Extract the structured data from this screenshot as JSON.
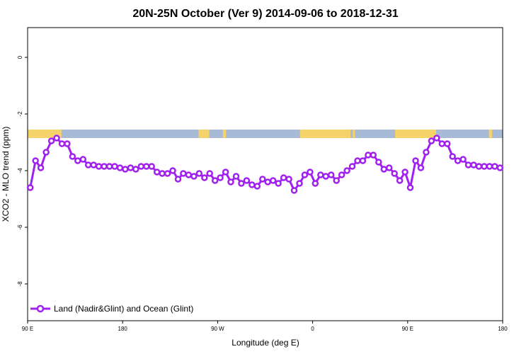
{
  "chart_data": {
    "type": "line",
    "title": "20N-25N October (Ver 9)   2014-09-06 to 2018-12-31",
    "xlabel": "Longitude (deg E)",
    "ylabel": "XCO2 - MLO trend (ppm)",
    "xlim": [
      90,
      540
    ],
    "ylim": [
      -9.3,
      1.05
    ],
    "x_ticks": [
      {
        "value": 90,
        "label": "90 E"
      },
      {
        "value": 180,
        "label": "180"
      },
      {
        "value": 270,
        "label": "90 W"
      },
      {
        "value": 360,
        "label": "0"
      },
      {
        "value": 450,
        "label": "90 E"
      },
      {
        "value": 540,
        "label": "180"
      }
    ],
    "y_ticks": [
      {
        "value": 0,
        "label": "0"
      },
      {
        "value": -2,
        "label": "-2"
      },
      {
        "value": -4,
        "label": "-4"
      },
      {
        "value": -6,
        "label": "-6"
      },
      {
        "value": -8,
        "label": "-8"
      }
    ],
    "grid": false,
    "legend_position": "bottom-left",
    "colors": {
      "series": "#a020f0",
      "land_band": "#f5d26a",
      "ocean_band": "#a7bbd6"
    },
    "land_ocean_band": {
      "y_range": [
        -2.85,
        -2.55
      ],
      "land_segments": [
        [
          90,
          122
        ],
        [
          252,
          262
        ],
        [
          275,
          278
        ],
        [
          348,
          396
        ],
        [
          398,
          400
        ],
        [
          438,
          477
        ],
        [
          527,
          530
        ]
      ]
    },
    "series": [
      {
        "name": "Land (Nadir&Glint) and Ocean (Glint)",
        "x": [
          92.5,
          97.5,
          102.5,
          107.5,
          112.5,
          117.5,
          122.5,
          127.5,
          132.5,
          137.5,
          142.5,
          147.5,
          152.5,
          157.5,
          162.5,
          167.5,
          172.5,
          177.5,
          182.5,
          187.5,
          192.5,
          197.5,
          202.5,
          207.5,
          212.5,
          217.5,
          222.5,
          227.5,
          232.5,
          237.5,
          242.5,
          247.5,
          252.5,
          257.5,
          262.5,
          267.5,
          272.5,
          277.5,
          282.5,
          287.5,
          292.5,
          297.5,
          302.5,
          307.5,
          312.5,
          317.5,
          322.5,
          327.5,
          332.5,
          337.5,
          342.5,
          347.5,
          352.5,
          357.5,
          362.5,
          367.5,
          372.5,
          377.5,
          382.5,
          387.5,
          392.5,
          397.5,
          402.5,
          407.5,
          412.5,
          417.5,
          422.5,
          427.5,
          432.5,
          437.5,
          442.5,
          447.5,
          452.5,
          457.5,
          462.5,
          467.5,
          472.5,
          477.5,
          482.5,
          487.5,
          492.5,
          497.5,
          502.5,
          507.5,
          512.5,
          517.5,
          522.5,
          527.5,
          532.5,
          537.5
        ],
        "y": [
          -4.6,
          -3.65,
          -3.9,
          -3.35,
          -2.95,
          -2.85,
          -3.05,
          -3.05,
          -3.5,
          -3.65,
          -3.6,
          -3.8,
          -3.8,
          -3.85,
          -3.85,
          -3.85,
          -3.85,
          -3.9,
          -3.95,
          -3.9,
          -3.95,
          -3.85,
          -3.85,
          -3.85,
          -4.05,
          -4.1,
          -4.1,
          -4.0,
          -4.3,
          -4.1,
          -4.15,
          -4.2,
          -4.1,
          -4.25,
          -4.1,
          -4.35,
          -4.25,
          -4.05,
          -4.4,
          -4.2,
          -4.45,
          -4.35,
          -4.5,
          -4.55,
          -4.3,
          -4.4,
          -4.35,
          -4.45,
          -4.25,
          -4.3,
          -4.7,
          -4.45,
          -4.15,
          -4.05,
          -4.45,
          -4.15,
          -4.2,
          -4.15,
          -4.35,
          -4.15,
          -4.0,
          -3.85,
          -3.65,
          -3.65,
          -3.45,
          -3.45,
          -3.7,
          -3.95,
          -3.9,
          -4.1,
          -4.35,
          -4.05,
          -4.6,
          -3.65,
          -3.9,
          -3.35,
          -2.95,
          -2.85,
          -3.05,
          -3.05,
          -3.5,
          -3.65,
          -3.6,
          -3.8,
          -3.8,
          -3.85,
          -3.85,
          -3.85,
          -3.85,
          -3.9
        ]
      }
    ]
  }
}
